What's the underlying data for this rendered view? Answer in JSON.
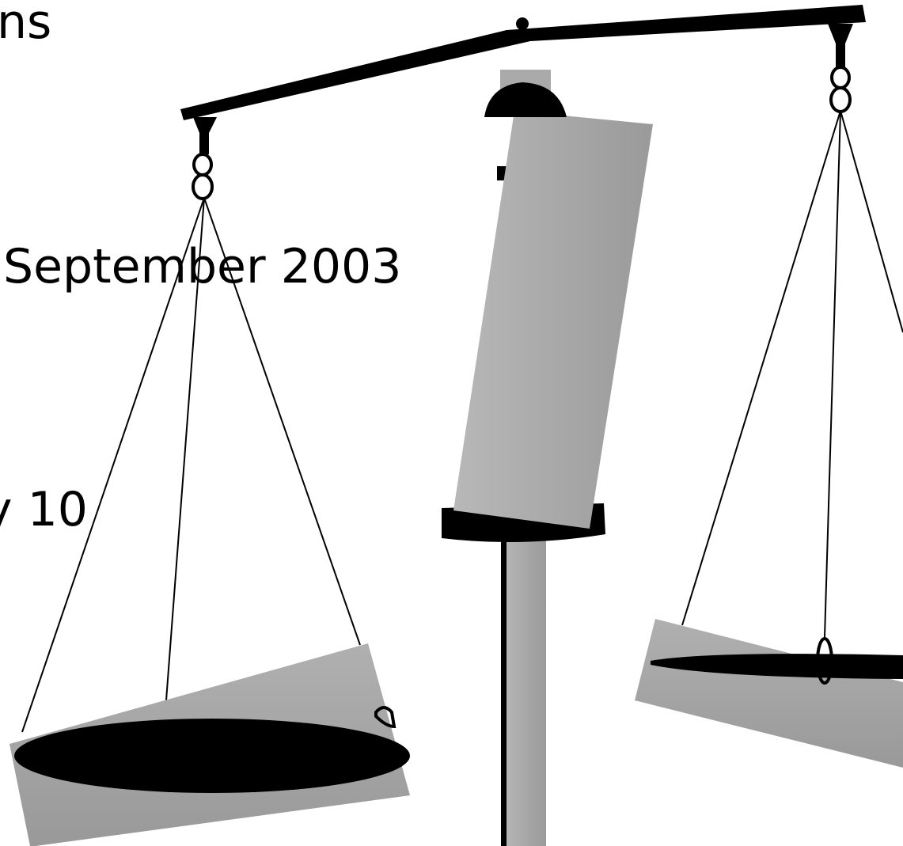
{
  "texts": [
    "ns",
    "September 2003",
    "y 10"
  ]
}
